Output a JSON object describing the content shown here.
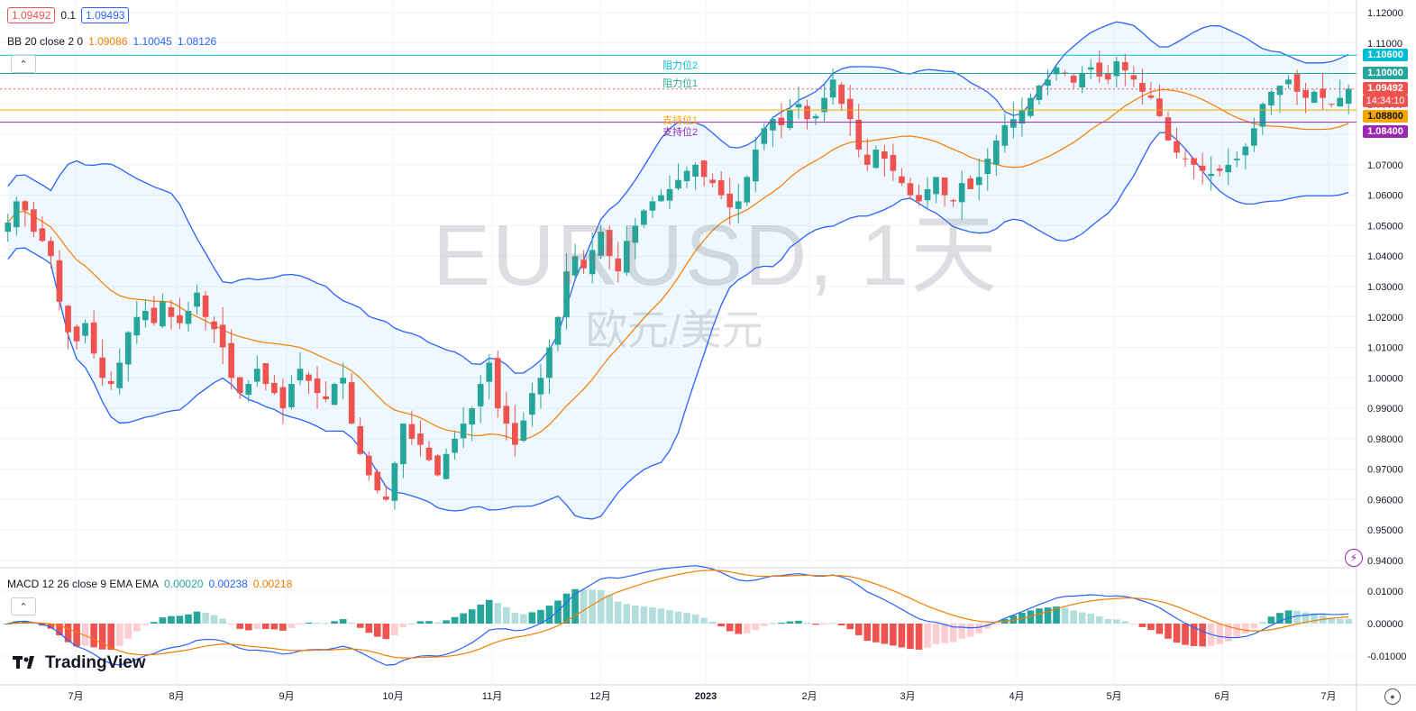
{
  "header": {
    "bid_price": "1.09492",
    "spread": "0.1",
    "ask_price": "1.09493",
    "bb_label": "BB 20 close 2 0",
    "bb_basis": "1.09086",
    "bb_upper": "1.10045",
    "bb_lower": "1.08126"
  },
  "watermark": {
    "symbol": "EURUSD, 1天",
    "name": "欧元/美元"
  },
  "levels": {
    "resistance2_label": "阻力位2",
    "resistance1_label": "阻力位1",
    "support1_label": "支持位1",
    "support2_label": "支持位2",
    "resistance2_price": "1.10600",
    "resistance1_price": "1.10000",
    "current_price": "1.09492",
    "countdown": "14:34:10",
    "support1_price": "1.08800",
    "support2_price": "1.08400"
  },
  "macd": {
    "label": "MACD 12 26 close 9 EMA EMA",
    "hist": "0.00020",
    "macd": "0.00238",
    "signal": "0.00218"
  },
  "brand": {
    "name": "TradingView"
  },
  "colors": {
    "up": "#26a69a",
    "down": "#ef5350",
    "bb_band": "#2962ff",
    "bb_basis": "#f57c00",
    "resistance": "#26a69a",
    "resistance2": "#00bcd4",
    "support1": "#f7a600",
    "support2": "#9c27b0",
    "macd_line": "#2962ff",
    "signal_line": "#f57c00"
  },
  "chart_data": {
    "type": "candlestick",
    "symbol": "EURUSD",
    "timeframe": "1天",
    "price_axis": {
      "ticks": [
        "1.12000",
        "1.11000",
        "1.10000",
        "1.09000",
        "1.08000",
        "1.07000",
        "1.06000",
        "1.05000",
        "1.04000",
        "1.03000",
        "1.02000",
        "1.01000",
        "1.00000",
        "0.99000",
        "0.98000",
        "0.97000",
        "0.96000",
        "0.95000",
        "0.94000"
      ],
      "range": [
        0.938,
        1.122
      ]
    },
    "macd_axis": {
      "ticks": [
        "0.01000",
        "0.00000",
        "-0.01000"
      ],
      "range": [
        -0.012,
        0.012
      ]
    },
    "time_axis": [
      "7月",
      "8月",
      "9月",
      "10月",
      "11月",
      "12月",
      "2023",
      "2月",
      "3月",
      "4月",
      "5月",
      "6月",
      "7月"
    ],
    "price_path": [
      1.051,
      1.058,
      1.055,
      1.048,
      1.045,
      1.04,
      1.025,
      1.015,
      1.012,
      1.018,
      1.008,
      1.0,
      0.998,
      1.005,
      1.015,
      1.02,
      1.022,
      1.018,
      1.025,
      1.02,
      1.018,
      1.022,
      1.028,
      1.02,
      1.016,
      1.01,
      1.0,
      0.995,
      0.998,
      1.003,
      0.998,
      0.995,
      0.99,
      0.998,
      1.003,
      0.999,
      0.995,
      0.993,
      0.998,
      1.0,
      0.985,
      0.975,
      0.968,
      0.963,
      0.96,
      0.972,
      0.985,
      0.98,
      0.978,
      0.973,
      0.968,
      0.975,
      0.98,
      0.985,
      0.99,
      0.998,
      1.005,
      0.99,
      0.985,
      0.978,
      0.986,
      0.995,
      1.0,
      1.01,
      1.02,
      1.035,
      1.04,
      1.036,
      1.042,
      1.048,
      1.04,
      1.035,
      1.045,
      1.05,
      1.055,
      1.058,
      1.06,
      1.062,
      1.065,
      1.068,
      1.07,
      1.066,
      1.064,
      1.06,
      1.056,
      1.058,
      1.066,
      1.075,
      1.082,
      1.085,
      1.083,
      1.088,
      1.09,
      1.085,
      1.086,
      1.092,
      1.098,
      1.09,
      1.085,
      1.075,
      1.07,
      1.075,
      1.072,
      1.068,
      1.064,
      1.06,
      1.058,
      1.062,
      1.066,
      1.06,
      1.058,
      1.064,
      1.062,
      1.066,
      1.072,
      1.078,
      1.083,
      1.085,
      1.088,
      1.092,
      1.096,
      1.098,
      1.102,
      1.1,
      1.097,
      1.1,
      1.102,
      1.099,
      1.098,
      1.104,
      1.101,
      1.098,
      1.094,
      1.092,
      1.086,
      1.078,
      1.074,
      1.072,
      1.07,
      1.068,
      1.067,
      1.068,
      1.07,
      1.072,
      1.076,
      1.082,
      1.09,
      1.094,
      1.096,
      1.098,
      1.094,
      1.092,
      1.094,
      1.092,
      1.09,
      1.092,
      1.095
    ],
    "series": [
      {
        "name": "BB 20 close 2 0"
      },
      {
        "name": "MACD 12 26 close 9 EMA EMA"
      }
    ]
  }
}
